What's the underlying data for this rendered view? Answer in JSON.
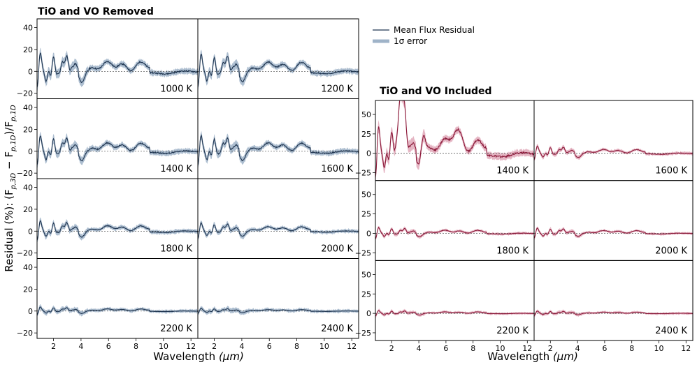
{
  "figure": {
    "ylabel": "Residual (%): (F",
    "ylabel_sub1": "p,3D",
    "ylabel_mid": " − F",
    "ylabel_sub2": "p,1D",
    "ylabel_end": ")/F",
    "ylabel_sub3": "p,1D"
  },
  "chart_data": [
    {
      "type": "line",
      "title": "TiO and VO Removed",
      "xlabel": "Wavelength",
      "xlabel_unit": "(μm)",
      "xlim": [
        0.8,
        12.5
      ],
      "ylim": [
        -25,
        48
      ],
      "xticks": [
        2,
        4,
        6,
        8,
        10,
        12
      ],
      "yticks": [
        -20,
        0,
        20,
        40
      ],
      "ytick_labels": [
        "−20",
        "0",
        "20",
        "40"
      ],
      "line_color": "#1f3550",
      "band_color": "#9fb3c8",
      "panels": [
        {
          "label": "1000 K",
          "amp": 1.0
        },
        {
          "label": "1200 K",
          "amp": 0.95
        },
        {
          "label": "1400 K",
          "amp": 0.85
        },
        {
          "label": "1600 K",
          "amp": 0.85
        },
        {
          "label": "1800 K",
          "amp": 0.55
        },
        {
          "label": "2000 K",
          "amp": 0.45
        },
        {
          "label": "2200 K",
          "amp": 0.22
        },
        {
          "label": "2400 K",
          "amp": 0.15
        }
      ]
    },
    {
      "type": "line",
      "title": "TiO and VO Included",
      "xlabel": "Wavelength",
      "xlabel_unit": "(μm)",
      "xlim": [
        0.8,
        12.5
      ],
      "ylim": [
        -35,
        68
      ],
      "xticks": [
        2,
        4,
        6,
        8,
        10,
        12
      ],
      "yticks": [
        -25,
        0,
        25,
        50
      ],
      "ytick_labels": [
        "−25",
        "0",
        "25",
        "50"
      ],
      "line_color": "#8b1a3a",
      "band_color": "#e0a8b8",
      "panels": [
        {
          "label": "1400 K",
          "amp": 2.0
        },
        {
          "label": "1600 K",
          "amp": 0.55
        },
        {
          "label": "1800 K",
          "amp": 0.45
        },
        {
          "label": "2000 K",
          "amp": 0.4
        },
        {
          "label": "2200 K",
          "amp": 0.22
        },
        {
          "label": "2400 K",
          "amp": 0.18
        }
      ]
    }
  ],
  "legend": {
    "line_label": "Mean Flux Residual",
    "band_label": "1σ error"
  }
}
